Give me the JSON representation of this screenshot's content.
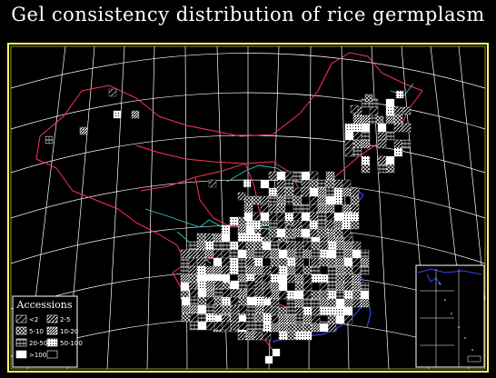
{
  "map": {
    "title": "Gel consistency distribution of rice germplasm",
    "legend": {
      "title": "Accessions",
      "entries": [
        {
          "label": "<2",
          "pattern": "sparse"
        },
        {
          "label": "2-5",
          "pattern": "hatch"
        },
        {
          "label": "5-10",
          "pattern": "cross"
        },
        {
          "label": "10-20",
          "pattern": "dense"
        },
        {
          "label": "20-50",
          "pattern": "double"
        },
        {
          "label": "50-100",
          "pattern": "grid"
        },
        {
          "label": ">100",
          "pattern": "solid"
        },
        {
          "label": "",
          "pattern": "outline"
        }
      ]
    },
    "colors": {
      "background": "#000000",
      "frame": "#ffff66",
      "graticule": "#ffffff",
      "boundary": "#ff3355",
      "river": "#33cccc",
      "coast": "#3344ff",
      "cells": "#ffffff"
    },
    "inset": "South China Sea islands"
  }
}
